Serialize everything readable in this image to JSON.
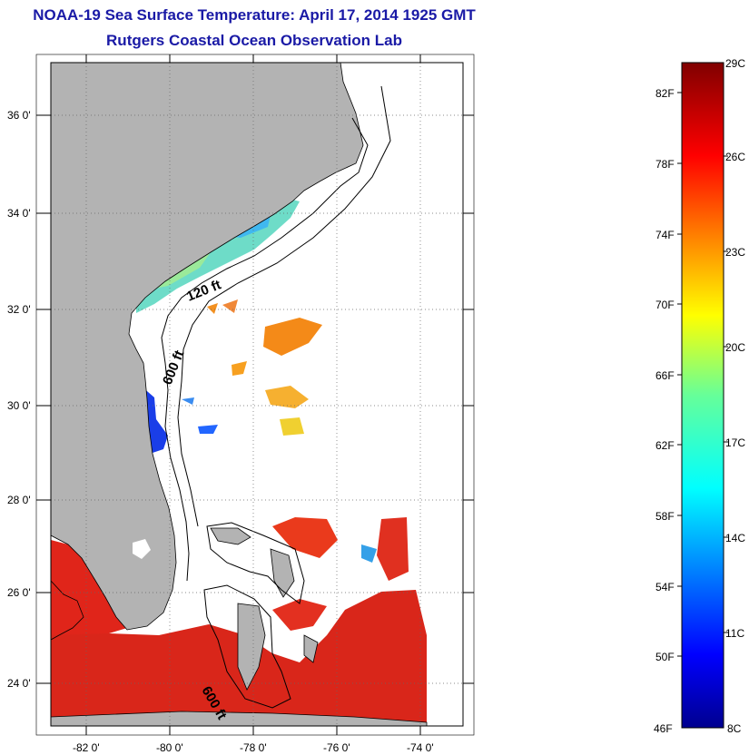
{
  "header": {
    "title": "NOAA-19 Sea Surface Temperature:  April 17, 2014 1925 GMT",
    "subtitle": "Rutgers Coastal Ocean Observation Lab"
  },
  "colors": {
    "title": "#1a1aa6",
    "land": "#b3b3b3",
    "ocean_no_data": "#ffffff",
    "warm_sst": "#e02010",
    "cool_sst": "#2050e0"
  },
  "map": {
    "lon_ticks": [
      "-82 0'",
      "-80 0'",
      "-78 0'",
      "-76 0'",
      "-74 0'"
    ],
    "lat_ticks": [
      "36 0'",
      "34 0'",
      "32 0'",
      "30 0'",
      "28 0'",
      "26 0'",
      "24 0'"
    ],
    "contour_labels": [
      "120 ft",
      "600 ft",
      "600 ft"
    ],
    "grid": true
  },
  "colorbar": {
    "fahrenheit_labels": [
      "82F",
      "78F",
      "74F",
      "70F",
      "66F",
      "62F",
      "58F",
      "54F",
      "50F",
      "46F"
    ],
    "celsius_labels": [
      "29C",
      "26C",
      "23C",
      "20C",
      "17C",
      "14C",
      "11C",
      "8C"
    ],
    "celsius_range": [
      8,
      29
    ],
    "fahrenheit_range": [
      46,
      84
    ],
    "colormap": "jet"
  }
}
